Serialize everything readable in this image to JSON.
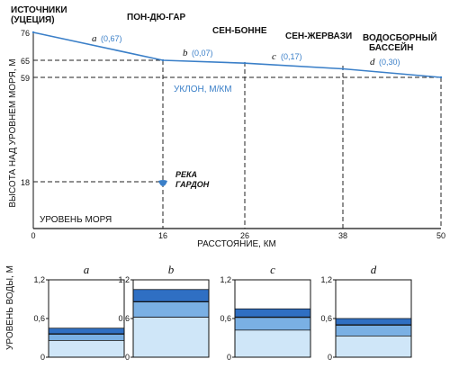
{
  "profile": {
    "y_axis_label": "ВЫСОТА НАД УРОВНЕМ МОРЯ, М",
    "x_axis_label": "РАССТОЯНИЕ, КМ",
    "slope_label": "УКЛОН, М/КМ",
    "sea_level_label": "УРОВЕНЬ МОРЯ",
    "x_ticks": [
      "0",
      "16",
      "26",
      "38",
      "50"
    ],
    "y_ticks": [
      "76",
      "65",
      "59",
      "18"
    ],
    "places": {
      "source_line1": "ИСТОЧНИКИ",
      "source_line2": "(УЦЕЦИЯ)",
      "pont_du_gard": "ПОН-ДЮ-ГАР",
      "saint_bonnet": "СЕН-БОННЕ",
      "saint_gervasy": "СЕН-ЖЕРВАЗИ",
      "basin_line1": "ВОДОСБОРНЫЙ",
      "basin_line2": "БАССЕЙН"
    },
    "river_line1": "РЕКА",
    "river_line2": "ГАРДОН",
    "segments": [
      {
        "letter": "a",
        "value": "(0,67)"
      },
      {
        "letter": "b",
        "value": "(0,07)"
      },
      {
        "letter": "c",
        "value": "(0,17)"
      },
      {
        "letter": "d",
        "value": "(0,30)"
      }
    ],
    "colors": {
      "line": "#3a7fc8",
      "dash": "#222222"
    }
  },
  "chart_data": {
    "type": "line",
    "x": [
      0,
      16,
      26,
      38,
      50
    ],
    "y": [
      76,
      65,
      64,
      62,
      59
    ],
    "xlabel": "РАССТОЯНИЕ, КМ",
    "ylabel": "ВЫСОТА НАД УРОВНЕМ МОРЯ, М",
    "xlim": [
      0,
      50
    ],
    "ylim": [
      0,
      76
    ]
  },
  "water_levels": {
    "y_axis_label": "УРОВЕНЬ ВОДЫ, М",
    "y_ticks": [
      "0",
      "0,6",
      "1,2"
    ],
    "panels": [
      {
        "letter": "a",
        "levels": [
          0.26,
          0.36,
          0.45
        ]
      },
      {
        "letter": "b",
        "levels": [
          0.62,
          0.86,
          1.05
        ]
      },
      {
        "letter": "c",
        "levels": [
          0.42,
          0.62,
          0.75
        ]
      },
      {
        "letter": "d",
        "levels": [
          0.33,
          0.5,
          0.6
        ]
      }
    ],
    "colors": {
      "low": "#cfe6f8",
      "mid": "#7ab0e4",
      "high": "#2f6fc3"
    }
  }
}
